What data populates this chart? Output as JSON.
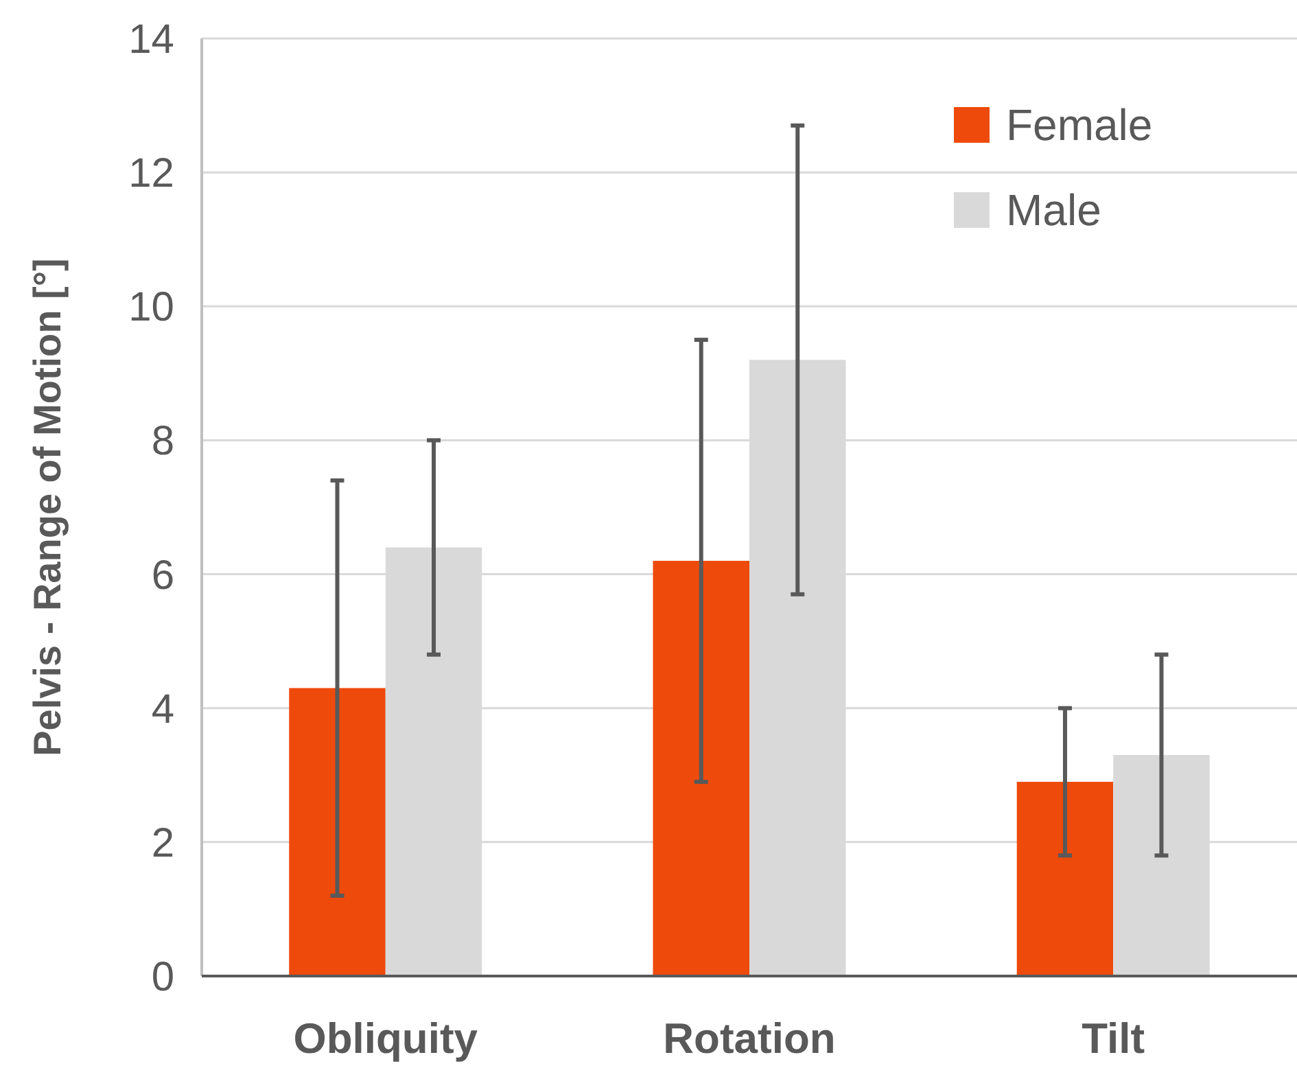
{
  "chart_data": {
    "type": "bar",
    "ylabel": "Pelvis - Range of Motion [°]",
    "categories": [
      "Obliquity",
      "Rotation",
      "Tilt"
    ],
    "series": [
      {
        "name": "Female",
        "color": "#ee4a0c",
        "values": [
          4.3,
          6.2,
          2.9
        ],
        "errors": [
          3.1,
          3.3,
          1.1
        ]
      },
      {
        "name": "Male",
        "color": "#d9d9d9",
        "values": [
          6.4,
          9.2,
          3.3
        ],
        "errors": [
          1.6,
          3.5,
          1.5
        ]
      }
    ],
    "ylim": [
      0,
      14
    ],
    "yticks": [
      0,
      2,
      4,
      6,
      8,
      10,
      12,
      14
    ],
    "grid": "y",
    "legend": "top right"
  }
}
